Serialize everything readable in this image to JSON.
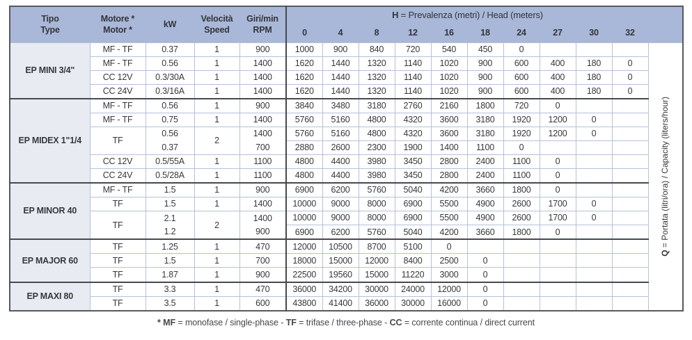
{
  "header": {
    "tipo1": "Tipo",
    "tipo2": "Type",
    "motore1": "Motore *",
    "motore2": "Motor *",
    "kw": "kW",
    "vel1": "Velocità",
    "vel2": "Speed",
    "giri1": "Giri/min",
    "giri2": "RPM",
    "h_bold": "H",
    "h_rest": " = Prevalenza (metri) / Head (meters)",
    "cols": [
      "0",
      "4",
      "8",
      "12",
      "16",
      "18",
      "24",
      "27",
      "30",
      "32"
    ]
  },
  "q_label": {
    "bold": "Q",
    "rest": " = Portata (litri/ora) / Capacity (liters/hour)"
  },
  "colors": {
    "header_blue": "#a9b7d8",
    "type_column_lavender": "#e9ebf3",
    "light_grid": "#b6c0da",
    "dark_separator": "#46484c"
  },
  "groups": [
    {
      "name": "EP MINI 3/4\"",
      "rows": [
        {
          "motor": "MF - TF",
          "kw": "0.37",
          "speed": "1",
          "rpm": "900",
          "values": [
            "1000",
            "900",
            "840",
            "720",
            "540",
            "450",
            "0",
            "",
            "",
            ""
          ]
        },
        {
          "motor": "MF - TF",
          "kw": "0.56",
          "speed": "1",
          "rpm": "1400",
          "values": [
            "1620",
            "1440",
            "1320",
            "1140",
            "1020",
            "900",
            "600",
            "400",
            "180",
            "0"
          ]
        },
        {
          "motor": "CC 12V",
          "kw": "0.3/30A",
          "speed": "1",
          "rpm": "1400",
          "values": [
            "1620",
            "1440",
            "1320",
            "1140",
            "1020",
            "900",
            "600",
            "400",
            "180",
            "0"
          ]
        },
        {
          "motor": "CC 24V",
          "kw": "0.3/16A",
          "speed": "1",
          "rpm": "1400",
          "values": [
            "1620",
            "1440",
            "1320",
            "1140",
            "1020",
            "900",
            "600",
            "400",
            "180",
            "0"
          ]
        }
      ]
    },
    {
      "name": "EP MIDEX 1\"1/4",
      "rows": [
        {
          "motor": "MF - TF",
          "kw": "0.56",
          "speed": "1",
          "rpm": "900",
          "values": [
            "3840",
            "3480",
            "3180",
            "2760",
            "2160",
            "1800",
            "720",
            "0",
            "",
            ""
          ]
        },
        {
          "motor": "MF - TF",
          "kw": "0.75",
          "speed": "1",
          "rpm": "1400",
          "values": [
            "5760",
            "5160",
            "4800",
            "4320",
            "3600",
            "3180",
            "1920",
            "1200",
            "0",
            ""
          ]
        },
        {
          "motor": "TF",
          "motor_span": 2,
          "kw": "0.56",
          "kw_open": true,
          "speed": "2",
          "speed_span": 2,
          "rpm": "1400",
          "rpm_open": true,
          "values": [
            "5760",
            "5160",
            "4800",
            "4320",
            "3600",
            "3180",
            "1920",
            "1200",
            "0",
            ""
          ]
        },
        {
          "motor_skip": true,
          "speed_skip": true,
          "kw": "0.37",
          "kw_cont": true,
          "rpm": "700",
          "rpm_cont": true,
          "values": [
            "2880",
            "2600",
            "2300",
            "1900",
            "1400",
            "1100",
            "0",
            "",
            "",
            ""
          ]
        },
        {
          "motor": "CC 12V",
          "kw": "0.5/55A",
          "speed": "1",
          "rpm": "1100",
          "values": [
            "4800",
            "4400",
            "3980",
            "3450",
            "2800",
            "2400",
            "1100",
            "0",
            "",
            ""
          ]
        },
        {
          "motor": "CC 24V",
          "kw": "0.5/28A",
          "speed": "1",
          "rpm": "1100",
          "values": [
            "4800",
            "4400",
            "3980",
            "3450",
            "2800",
            "2400",
            "1100",
            "0",
            "",
            ""
          ]
        }
      ]
    },
    {
      "name": "EP MINOR 40",
      "rows": [
        {
          "motor": "MF - TF",
          "kw": "1.5",
          "speed": "1",
          "rpm": "900",
          "values": [
            "6900",
            "6200",
            "5760",
            "5040",
            "4200",
            "3660",
            "1800",
            "0",
            "",
            ""
          ]
        },
        {
          "motor": "TF",
          "kw": "1.5",
          "speed": "1",
          "rpm": "1400",
          "values": [
            "10000",
            "9000",
            "8000",
            "6900",
            "5500",
            "4900",
            "2600",
            "1700",
            "0",
            ""
          ]
        },
        {
          "motor": "TF",
          "motor_span": 2,
          "kw": "2.1",
          "kw_open": true,
          "speed": "2",
          "speed_span": 2,
          "rpm": "1400",
          "rpm_open": true,
          "values": [
            "10000",
            "9000",
            "8000",
            "6900",
            "5500",
            "4900",
            "2600",
            "1700",
            "0",
            ""
          ]
        },
        {
          "motor_skip": true,
          "speed_skip": true,
          "kw": "1.2",
          "kw_cont": true,
          "rpm": "900",
          "rpm_cont": true,
          "values": [
            "6900",
            "6200",
            "5760",
            "5040",
            "4200",
            "3660",
            "1800",
            "0",
            "",
            ""
          ]
        }
      ]
    },
    {
      "name": "EP MAJOR 60",
      "rows": [
        {
          "motor": "TF",
          "kw": "1.25",
          "speed": "1",
          "rpm": "470",
          "values": [
            "12000",
            "10500",
            "8700",
            "5100",
            "0",
            "",
            "",
            "",
            "",
            ""
          ]
        },
        {
          "motor": "TF",
          "kw": "1.5",
          "speed": "1",
          "rpm": "700",
          "values": [
            "18000",
            "15000",
            "12000",
            "8400",
            "2500",
            "0",
            "",
            "",
            "",
            ""
          ]
        },
        {
          "motor": "TF",
          "kw": "1.87",
          "speed": "1",
          "rpm": "900",
          "values": [
            "22500",
            "19560",
            "15000",
            "11220",
            "3000",
            "0",
            "",
            "",
            "",
            ""
          ]
        }
      ]
    },
    {
      "name": "EP MAXI 80",
      "rows": [
        {
          "motor": "TF",
          "kw": "3.3",
          "speed": "1",
          "rpm": "470",
          "values": [
            "36000",
            "34200",
            "30000",
            "24000",
            "12000",
            "0",
            "",
            "",
            "",
            ""
          ]
        },
        {
          "motor": "TF",
          "kw": "3.5",
          "speed": "1",
          "rpm": "600",
          "values": [
            "43800",
            "41400",
            "36000",
            "30000",
            "16000",
            "0",
            "",
            "",
            "",
            ""
          ]
        }
      ]
    }
  ],
  "footnote": {
    "parts": [
      {
        "t": "* MF",
        "b": true
      },
      {
        "t": " = monofase / single-phase - ",
        "b": false
      },
      {
        "t": "TF",
        "b": true
      },
      {
        "t": " = trifase / three-phase - ",
        "b": false
      },
      {
        "t": "CC",
        "b": true
      },
      {
        "t": " = corrente continua / direct current",
        "b": false
      }
    ]
  }
}
